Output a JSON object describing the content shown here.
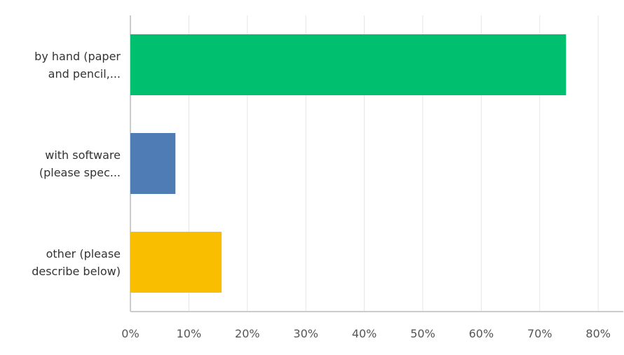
{
  "chart_data": {
    "type": "hbar",
    "categories": [
      "by hand (paper\nand pencil,...",
      "with software\n(please spec...",
      "other (please\ndescribe below)"
    ],
    "series": [
      {
        "colors": [
          "#00bf6f",
          "#507cb6",
          "#f9be00"
        ],
        "values": [
          74.5,
          7.7,
          15.6
        ]
      }
    ],
    "xlim": [
      0,
      84.3
    ],
    "xticks": [
      {
        "value": 0,
        "label": "0%"
      },
      {
        "value": 10,
        "label": "10%"
      },
      {
        "value": 20,
        "label": "20%"
      },
      {
        "value": 30,
        "label": "30%"
      },
      {
        "value": 40,
        "label": "40%"
      },
      {
        "value": 50,
        "label": "50%"
      },
      {
        "value": 60,
        "label": "60%"
      },
      {
        "value": 70,
        "label": "70%"
      },
      {
        "value": 80,
        "label": "80%"
      }
    ],
    "grid": true
  }
}
